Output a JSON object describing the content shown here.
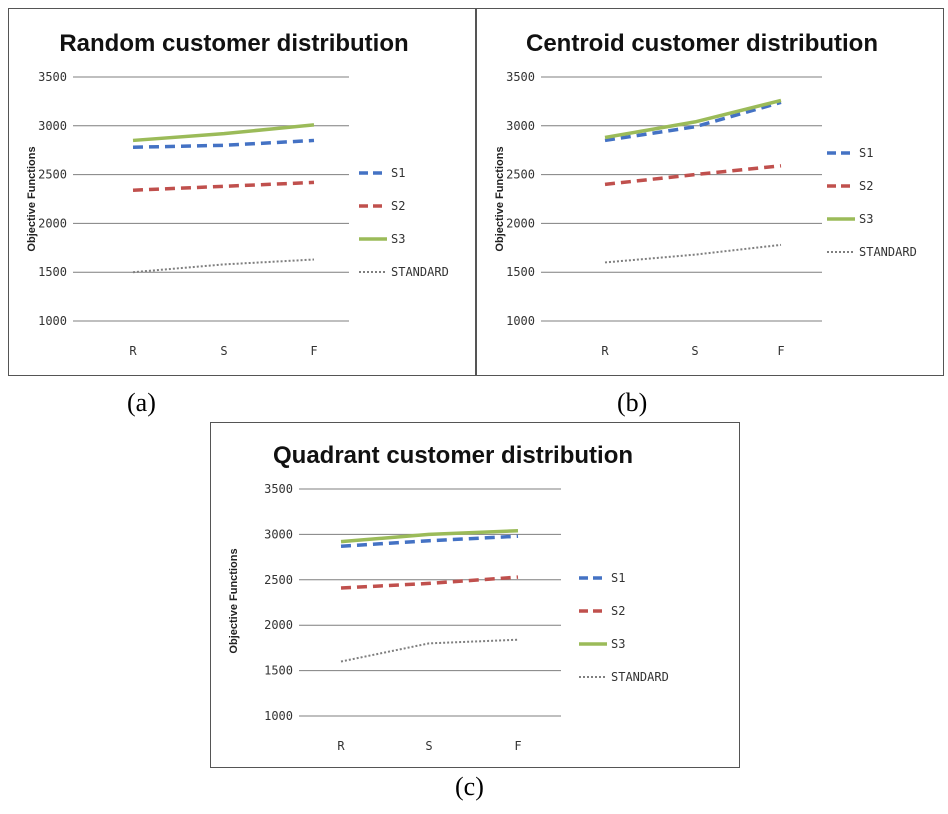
{
  "captions": [
    "(a)",
    "(b)",
    "(c)"
  ],
  "chart_data": [
    {
      "type": "line",
      "title": "Random customer distribution",
      "ylabel": "Objective Functions",
      "xlabel": "",
      "categories": [
        "R",
        "S",
        "F"
      ],
      "ylim": [
        1000,
        3500
      ],
      "yticks": [
        "1000",
        "1500",
        "2000",
        "2500",
        "3000",
        "3500"
      ],
      "grid": true,
      "legend": "right",
      "series": [
        {
          "name": "S1",
          "values": [
            2780,
            2800,
            2850
          ],
          "color": "#4472C4",
          "style": "dashed"
        },
        {
          "name": "S2",
          "values": [
            2340,
            2380,
            2420
          ],
          "color": "#C0504D",
          "style": "dashed"
        },
        {
          "name": "S3",
          "values": [
            2850,
            2920,
            3010
          ],
          "color": "#9BBB59",
          "style": "solid"
        },
        {
          "name": "STANDARD",
          "values": [
            1500,
            1580,
            1630
          ],
          "color": "#7f7f7f",
          "style": "dotted"
        }
      ]
    },
    {
      "type": "line",
      "title": "Centroid customer distribution",
      "ylabel": "Objective Functions",
      "xlabel": "",
      "categories": [
        "R",
        "S",
        "F"
      ],
      "ylim": [
        1000,
        3500
      ],
      "yticks": [
        "1000",
        "1500",
        "2000",
        "2500",
        "3000",
        "3500"
      ],
      "grid": true,
      "legend": "right",
      "series": [
        {
          "name": "S1",
          "values": [
            2850,
            2990,
            3240
          ],
          "color": "#4472C4",
          "style": "dashed"
        },
        {
          "name": "S2",
          "values": [
            2400,
            2500,
            2590
          ],
          "color": "#C0504D",
          "style": "dashed"
        },
        {
          "name": "S3",
          "values": [
            2880,
            3040,
            3260
          ],
          "color": "#9BBB59",
          "style": "solid"
        },
        {
          "name": "STANDARD",
          "values": [
            1600,
            1680,
            1780
          ],
          "color": "#7f7f7f",
          "style": "dotted"
        }
      ]
    },
    {
      "type": "line",
      "title": "Quadrant customer distribution",
      "ylabel": "Objective Functions",
      "xlabel": "",
      "categories": [
        "R",
        "S",
        "F"
      ],
      "ylim": [
        1000,
        3500
      ],
      "yticks": [
        "1000",
        "1500",
        "2000",
        "2500",
        "3000",
        "3500"
      ],
      "grid": true,
      "legend": "right",
      "series": [
        {
          "name": "S1",
          "values": [
            2870,
            2930,
            2980
          ],
          "color": "#4472C4",
          "style": "dashed"
        },
        {
          "name": "S2",
          "values": [
            2410,
            2460,
            2530
          ],
          "color": "#C0504D",
          "style": "dashed"
        },
        {
          "name": "S3",
          "values": [
            2920,
            3000,
            3040
          ],
          "color": "#9BBB59",
          "style": "solid"
        },
        {
          "name": "STANDARD",
          "values": [
            1600,
            1800,
            1840
          ],
          "color": "#7f7f7f",
          "style": "dotted"
        }
      ]
    }
  ]
}
